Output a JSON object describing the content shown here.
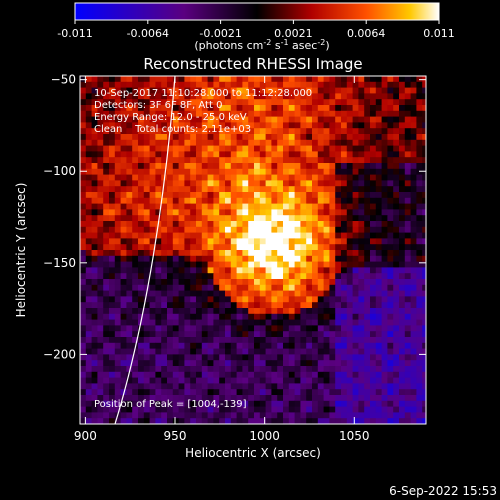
{
  "chart_data": {
    "type": "heatmap",
    "title": "Reconstructed RHESSI Image",
    "xlabel": "Heliocentric X (arcsec)",
    "ylabel": "Heliocentric Y (arcsec)",
    "xlim": [
      897,
      1090
    ],
    "ylim": [
      -238,
      -48
    ],
    "x_ticks": [
      900,
      950,
      1000,
      1050
    ],
    "y_ticks": [
      -50,
      -100,
      -150,
      -200
    ],
    "colorbar": {
      "ticks": [
        "-0.011",
        "-0.0064",
        "-0.0021",
        "0.0021",
        "0.0064",
        "0.011"
      ],
      "min": -0.011,
      "max": 0.011,
      "unit_parts": [
        "(photons cm",
        "-2",
        " s",
        "-1",
        " asec",
        "-2",
        ")"
      ]
    },
    "info_lines": [
      "10-Sep-2017 11:10:28.000 to 11:12:28.000",
      "Detectors: 3F 6F 8F, Att 0",
      "Energy Range: 12.0 - 25.0 keV",
      "Clean    Total counts: 2.11e+03"
    ],
    "peak_text": "Position of Peak = [1004,-139]",
    "peak": {
      "x": 1004,
      "y": -139
    },
    "date_stamp": "6-Sep-2022 15:53"
  }
}
